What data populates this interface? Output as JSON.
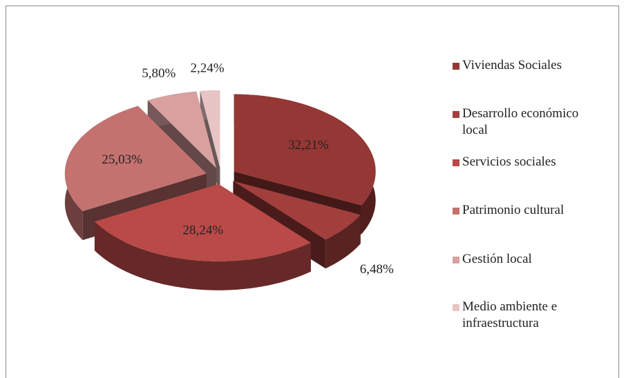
{
  "chart_data": {
    "type": "pie3d",
    "categories": [
      "Viviendas Sociales",
      "Desarrollo económico local",
      "Servicios sociales",
      "Patrimonio cultural",
      "Gestión local",
      "Medio ambiente e infraestructura"
    ],
    "values": [
      32.21,
      6.48,
      28.24,
      25.03,
      5.8,
      2.24
    ],
    "value_labels": [
      "32,21%",
      "6,48%",
      "28,24%",
      "25,03%",
      "5,80%",
      "2,24%"
    ],
    "colors": [
      "#953735",
      "#a23f3d",
      "#b94a48",
      "#c47270",
      "#d9a0a0",
      "#e8c4c4"
    ],
    "legend": "right"
  }
}
